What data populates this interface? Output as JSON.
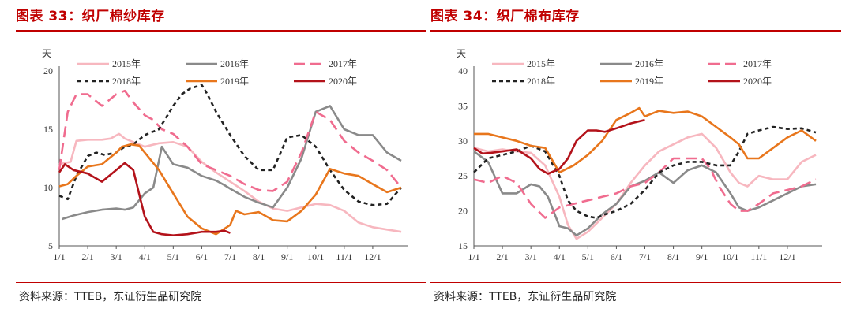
{
  "charts": [
    {
      "title": "图表 33：织厂棉纱库存",
      "source": "资料来源：TTEB，东证衍生品研究院"
    },
    {
      "title": "图表 34：织厂棉布库存",
      "source": "资料来源：TTEB，东证衍生品研究院"
    }
  ],
  "colors": {
    "2015年": "#f7b7bf",
    "2016年": "#8a8a8a",
    "2017年": "#f06c8f",
    "2018年": "#222222",
    "2019年": "#e8761c",
    "2020年": "#b3121a",
    "title": "#c00000"
  },
  "chart_data": [
    {
      "type": "line",
      "title": "图表 33：织厂棉纱库存",
      "ylabel": "天",
      "ylim": [
        5,
        20
      ],
      "yticks": [
        5,
        10,
        15,
        20
      ],
      "xlim": [
        1,
        13
      ],
      "xticks": [
        "1/1",
        "2/1",
        "3/1",
        "4/1",
        "5/1",
        "6/1",
        "7/1",
        "8/1",
        "9/1",
        "10/1",
        "11/1",
        "12/1"
      ],
      "legend": "top",
      "series": [
        {
          "name": "2015年",
          "style": "solid",
          "x": [
            1,
            1.4,
            1.6,
            2,
            2.5,
            2.8,
            3.1,
            3.3,
            3.6,
            4,
            4.5,
            5,
            5.5,
            6,
            6.5,
            7,
            7.5,
            8,
            8.5,
            9,
            9.5,
            10,
            10.5,
            11,
            11.5,
            12,
            12.5,
            13
          ],
          "y": [
            12.0,
            12.2,
            14.0,
            14.1,
            14.1,
            14.2,
            14.6,
            14.2,
            13.9,
            13.5,
            13.8,
            13.9,
            13.5,
            12.2,
            11.3,
            10.5,
            9.7,
            8.8,
            8.2,
            8.0,
            8.3,
            8.6,
            8.5,
            8.0,
            7.0,
            6.6,
            6.4,
            6.2
          ]
        },
        {
          "name": "2016年",
          "style": "solid",
          "x": [
            1.1,
            1.5,
            2,
            2.5,
            3,
            3.3,
            3.6,
            4,
            4.3,
            4.6,
            5,
            5.5,
            6,
            6.5,
            6.8,
            7,
            7.5,
            8,
            8.5,
            9,
            9.5,
            10,
            10.5,
            11,
            11.5,
            12,
            12.5,
            13
          ],
          "y": [
            7.3,
            7.6,
            7.9,
            8.1,
            8.2,
            8.1,
            8.3,
            9.5,
            10.0,
            13.5,
            12.0,
            11.7,
            11.0,
            10.6,
            10.2,
            9.9,
            9.2,
            8.7,
            8.3,
            10.0,
            12.5,
            16.5,
            17.0,
            15.0,
            14.5,
            14.5,
            13.0,
            12.3
          ]
        },
        {
          "name": "2017年",
          "style": "dash",
          "x": [
            1,
            1.3,
            1.6,
            2,
            2.5,
            3,
            3.3,
            3.6,
            4,
            4.3,
            4.6,
            5,
            5.5,
            6,
            6.5,
            7,
            7.5,
            8,
            8.5,
            9,
            9.5,
            10,
            10.5,
            11,
            11.5,
            12,
            12.5,
            13
          ],
          "y": [
            11.5,
            16.5,
            18.0,
            18.0,
            17.0,
            18.0,
            18.3,
            17.3,
            16.2,
            15.8,
            15.0,
            14.6,
            13.5,
            12.0,
            11.5,
            11.0,
            10.3,
            9.8,
            9.7,
            10.5,
            13.0,
            16.5,
            15.8,
            14.0,
            13.0,
            12.3,
            11.5,
            10.0
          ]
        },
        {
          "name": "2018年",
          "style": "dot",
          "x": [
            1,
            1.3,
            1.6,
            2,
            2.3,
            2.6,
            3,
            3.3,
            3.6,
            4,
            4.5,
            5,
            5.3,
            5.6,
            6,
            6.2,
            6.5,
            7,
            7.5,
            8,
            8.5,
            9,
            9.5,
            10,
            10.5,
            11,
            11.5,
            12,
            12.5,
            13
          ],
          "y": [
            9.3,
            9.0,
            11.0,
            12.7,
            13.0,
            12.8,
            13.0,
            13.5,
            13.7,
            14.5,
            15.0,
            17.0,
            18.0,
            18.5,
            18.8,
            18.0,
            16.5,
            14.5,
            12.7,
            11.5,
            11.5,
            14.3,
            14.5,
            13.5,
            11.5,
            9.8,
            8.8,
            8.5,
            8.6,
            10.0
          ]
        },
        {
          "name": "2019年",
          "style": "solid",
          "x": [
            1,
            1.3,
            1.6,
            2,
            2.5,
            3,
            3.2,
            3.5,
            3.8,
            4,
            4.5,
            5,
            5.5,
            6,
            6.5,
            7,
            7.2,
            7.5,
            8,
            8.5,
            9,
            9.5,
            10,
            10.5,
            11,
            11.5,
            12,
            12.5,
            13
          ],
          "y": [
            10.1,
            10.3,
            11.0,
            11.8,
            12.0,
            13.0,
            13.5,
            13.7,
            13.6,
            13.0,
            11.5,
            9.5,
            7.5,
            6.5,
            6.0,
            6.8,
            8.0,
            7.7,
            7.9,
            7.2,
            7.1,
            8.0,
            9.4,
            11.6,
            11.2,
            11.0,
            10.3,
            9.6,
            10.0
          ]
        },
        {
          "name": "2020年",
          "style": "solid",
          "x": [
            1,
            1.2,
            1.5,
            2,
            2.5,
            3,
            3.3,
            3.6,
            3.8,
            4,
            4.3,
            4.6,
            5,
            5.5,
            6,
            6.5,
            6.8,
            7
          ],
          "y": [
            11.3,
            12.0,
            11.5,
            11.2,
            10.5,
            11.5,
            12.1,
            11.5,
            9.5,
            7.5,
            6.2,
            6.0,
            5.9,
            6.0,
            6.2,
            6.2,
            6.3,
            6.1
          ]
        }
      ]
    },
    {
      "type": "line",
      "title": "图表 34：织厂棉布库存",
      "ylabel": "天",
      "ylim": [
        15,
        40
      ],
      "yticks": [
        15,
        20,
        25,
        30,
        35,
        40
      ],
      "xlim": [
        1,
        13
      ],
      "xticks": [
        "1/1",
        "2/1",
        "3/1",
        "4/1",
        "5/1",
        "6/1",
        "7/1",
        "8/1",
        "9/1",
        "10/1",
        "11/1",
        "12/1"
      ],
      "legend": "top",
      "series": [
        {
          "name": "2015年",
          "style": "solid",
          "x": [
            1,
            1.5,
            2,
            2.5,
            3,
            3.5,
            4,
            4.3,
            4.6,
            5,
            5.5,
            6,
            6.5,
            7,
            7.5,
            8,
            8.5,
            9,
            9.5,
            10,
            10.3,
            10.6,
            11,
            11.5,
            12,
            12.5,
            13
          ],
          "y": [
            29.0,
            28.5,
            28.8,
            28.5,
            28.3,
            26.5,
            22.0,
            18.0,
            16.0,
            17.0,
            19.0,
            21.0,
            24.0,
            26.5,
            28.5,
            29.5,
            30.5,
            31.0,
            29.0,
            25.5,
            24.0,
            23.5,
            25.0,
            24.5,
            24.5,
            27.0,
            28.0
          ]
        },
        {
          "name": "2016年",
          "style": "solid",
          "x": [
            1,
            1.5,
            2,
            2.5,
            3,
            3.3,
            3.6,
            4,
            4.3,
            4.6,
            5,
            5.5,
            6,
            6.5,
            7,
            7.5,
            8,
            8.5,
            9,
            9.5,
            10,
            10.3,
            10.6,
            11,
            11.5,
            12,
            12.5,
            13
          ],
          "y": [
            28.5,
            27.0,
            22.5,
            22.5,
            23.8,
            23.5,
            22.0,
            17.8,
            17.5,
            16.5,
            17.5,
            19.5,
            21.0,
            23.5,
            24.3,
            25.5,
            24.0,
            25.8,
            26.5,
            25.5,
            22.5,
            20.5,
            20.0,
            20.5,
            21.5,
            22.5,
            23.5,
            23.8
          ]
        },
        {
          "name": "2017年",
          "style": "dash",
          "x": [
            1,
            1.5,
            2,
            2.5,
            3,
            3.5,
            4,
            4.5,
            5,
            5.5,
            6,
            6.5,
            7,
            7.5,
            8,
            8.5,
            9,
            9.3,
            9.6,
            10,
            10.3,
            10.6,
            11,
            11.5,
            12,
            12.5,
            13
          ],
          "y": [
            24.5,
            24.0,
            25.0,
            24.0,
            21.0,
            19.0,
            20.5,
            21.0,
            21.5,
            22.0,
            22.5,
            23.5,
            24.0,
            25.5,
            27.5,
            27.5,
            27.5,
            26.0,
            23.5,
            21.0,
            20.0,
            20.0,
            21.0,
            22.5,
            23.0,
            23.5,
            24.5
          ]
        },
        {
          "name": "2018年",
          "style": "dot",
          "x": [
            1,
            1.5,
            2,
            2.5,
            3,
            3.5,
            4,
            4.3,
            4.6,
            5,
            5.3,
            5.6,
            6,
            6.5,
            7,
            7.5,
            8,
            8.5,
            9,
            9.5,
            10,
            10.3,
            10.6,
            11,
            11.5,
            12,
            12.5,
            13
          ],
          "y": [
            25.5,
            27.5,
            28.0,
            28.5,
            29.3,
            28.5,
            25.0,
            21.5,
            20.0,
            19.2,
            19.0,
            19.5,
            20.0,
            21.0,
            23.0,
            25.5,
            26.5,
            27.0,
            27.0,
            26.5,
            26.5,
            28.5,
            31.0,
            31.5,
            32.0,
            31.7,
            31.8,
            31.2
          ]
        },
        {
          "name": "2019年",
          "style": "solid",
          "x": [
            1,
            1.5,
            2,
            2.5,
            3,
            3.5,
            4,
            4.5,
            5,
            5.5,
            6,
            6.5,
            6.8,
            7,
            7.5,
            8,
            8.5,
            9,
            9.5,
            10,
            10.3,
            10.6,
            11,
            11.5,
            12,
            12.5,
            13
          ],
          "y": [
            31.0,
            31.0,
            30.5,
            30.0,
            29.3,
            29.0,
            25.5,
            26.5,
            28.0,
            30.0,
            33.0,
            34.0,
            34.7,
            33.5,
            34.3,
            34.0,
            34.2,
            33.5,
            32.0,
            30.5,
            29.5,
            27.5,
            27.5,
            29.0,
            30.5,
            31.5,
            30.0
          ]
        },
        {
          "name": "2020年",
          "style": "solid",
          "x": [
            1,
            1.3,
            1.6,
            2,
            2.5,
            3,
            3.3,
            3.6,
            4,
            4.3,
            4.6,
            5,
            5.3,
            5.6,
            6,
            6.5,
            7
          ],
          "y": [
            29.0,
            28.2,
            28.3,
            28.5,
            28.8,
            27.5,
            26.0,
            25.3,
            26.0,
            27.5,
            30.0,
            31.5,
            31.5,
            31.3,
            31.8,
            32.5,
            33.0
          ]
        }
      ]
    }
  ]
}
